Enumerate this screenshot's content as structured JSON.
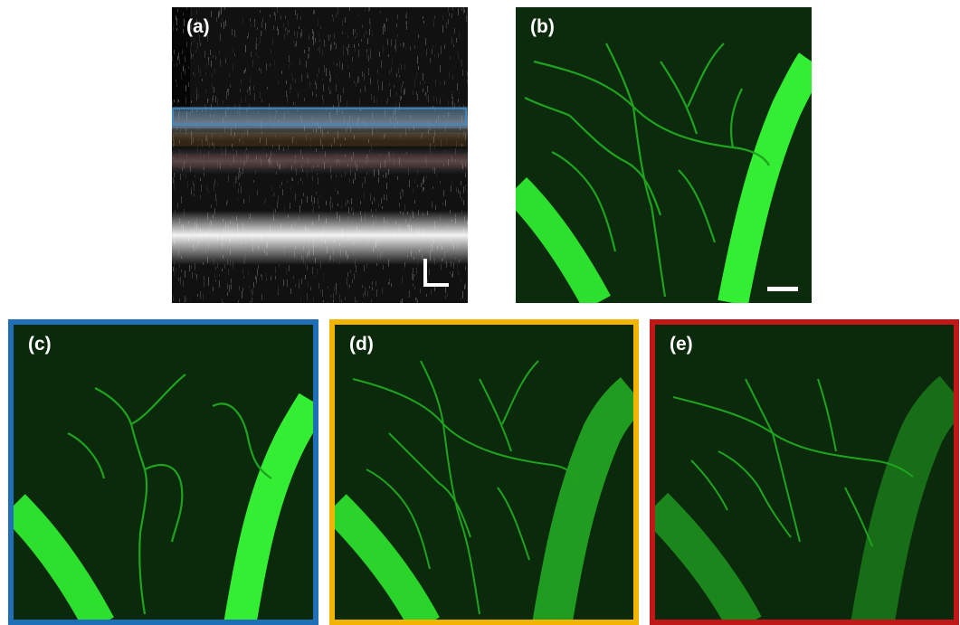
{
  "figure": {
    "panels": [
      {
        "id": "a",
        "label": "(a)",
        "kind": "oct-cross-section",
        "roi_colors": [
          "#3a8fd0",
          "#f0a030",
          "#d04040"
        ]
      },
      {
        "id": "b",
        "label": "(b)",
        "kind": "angiogram-full"
      },
      {
        "id": "c",
        "label": "(c)",
        "kind": "angiogram-layer",
        "frame_color": "#1f6fb8"
      },
      {
        "id": "d",
        "label": "(d)",
        "kind": "angiogram-layer",
        "frame_color": "#f2b400"
      },
      {
        "id": "e",
        "label": "(e)",
        "kind": "angiogram-layer",
        "frame_color": "#c01818"
      }
    ]
  }
}
